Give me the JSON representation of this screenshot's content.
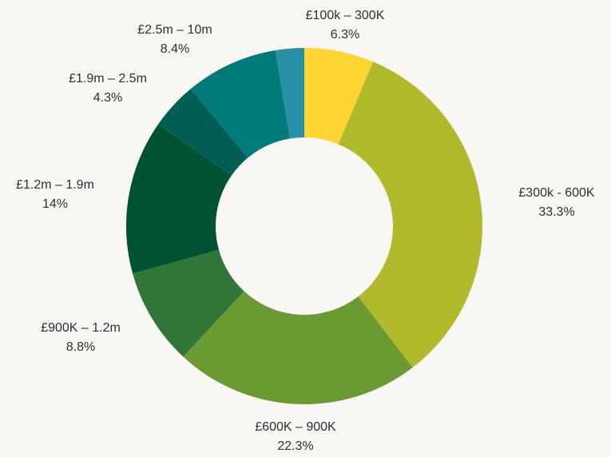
{
  "chart_data": {
    "type": "pie",
    "donut": true,
    "title": "",
    "legend": "none",
    "start_angle_deg": 0,
    "direction": "clockwise",
    "slices": [
      {
        "label": "£100k – 300K",
        "value": 6.3,
        "display": "6.3%",
        "color": "#fdd431"
      },
      {
        "label": "£300k - 600K",
        "value": 33.3,
        "display": "33.3%",
        "color": "#b0ba2c"
      },
      {
        "label": "£600K – 900K",
        "value": 22.3,
        "display": "22.3%",
        "color": "#6b9a33"
      },
      {
        "label": "£900K – 1.2m",
        "value": 8.8,
        "display": "8.8%",
        "color": "#307637"
      },
      {
        "label": "£1.2m – 1.9m",
        "value": 14,
        "display": "14%",
        "color": "#005230"
      },
      {
        "label": "£1.9m – 2.5m",
        "value": 4.3,
        "display": "4.3%",
        "color": "#005e54"
      },
      {
        "label": "£2.5m – 10m",
        "value": 8.4,
        "display": "8.4%",
        "color": "#007a7b"
      },
      {
        "label": "",
        "value": 2.6,
        "display": "",
        "color": "#2a8fa9"
      }
    ]
  }
}
